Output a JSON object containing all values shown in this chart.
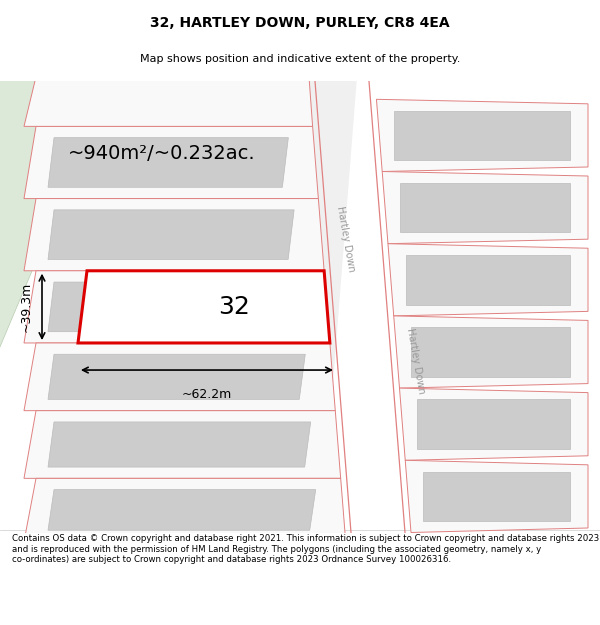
{
  "title": "32, HARTLEY DOWN, PURLEY, CR8 4EA",
  "subtitle": "Map shows position and indicative extent of the property.",
  "footer": "Contains OS data © Crown copyright and database right 2021. This information is subject to Crown copyright and database rights 2023 and is reproduced with the permission of HM Land Registry. The polygons (including the associated geometry, namely x, y co-ordinates) are subject to Crown copyright and database rights 2023 Ordnance Survey 100026316.",
  "area_label": "~940m²/~0.232ac.",
  "width_label": "~62.2m",
  "height_label": "~39.3m",
  "plot_number": "32",
  "bg_color": "#ffffff",
  "parcel_edge": "#e08080",
  "parcel_fill": "#f9f9f9",
  "building_fill": "#cccccc",
  "building_edge": "#bbbbbb",
  "main_edge": "#dd0000",
  "main_fill": "#ffffff",
  "green_fill": "#dce8d8",
  "green_edge": "#b8ccb0",
  "road_label_color": "#999999",
  "dim_color": "#000000",
  "title_fontsize": 10,
  "subtitle_fontsize": 8,
  "footer_fontsize": 6.2,
  "area_fontsize": 14,
  "plot_num_fontsize": 18,
  "dim_fontsize": 9,
  "road_label_fontsize": 7
}
